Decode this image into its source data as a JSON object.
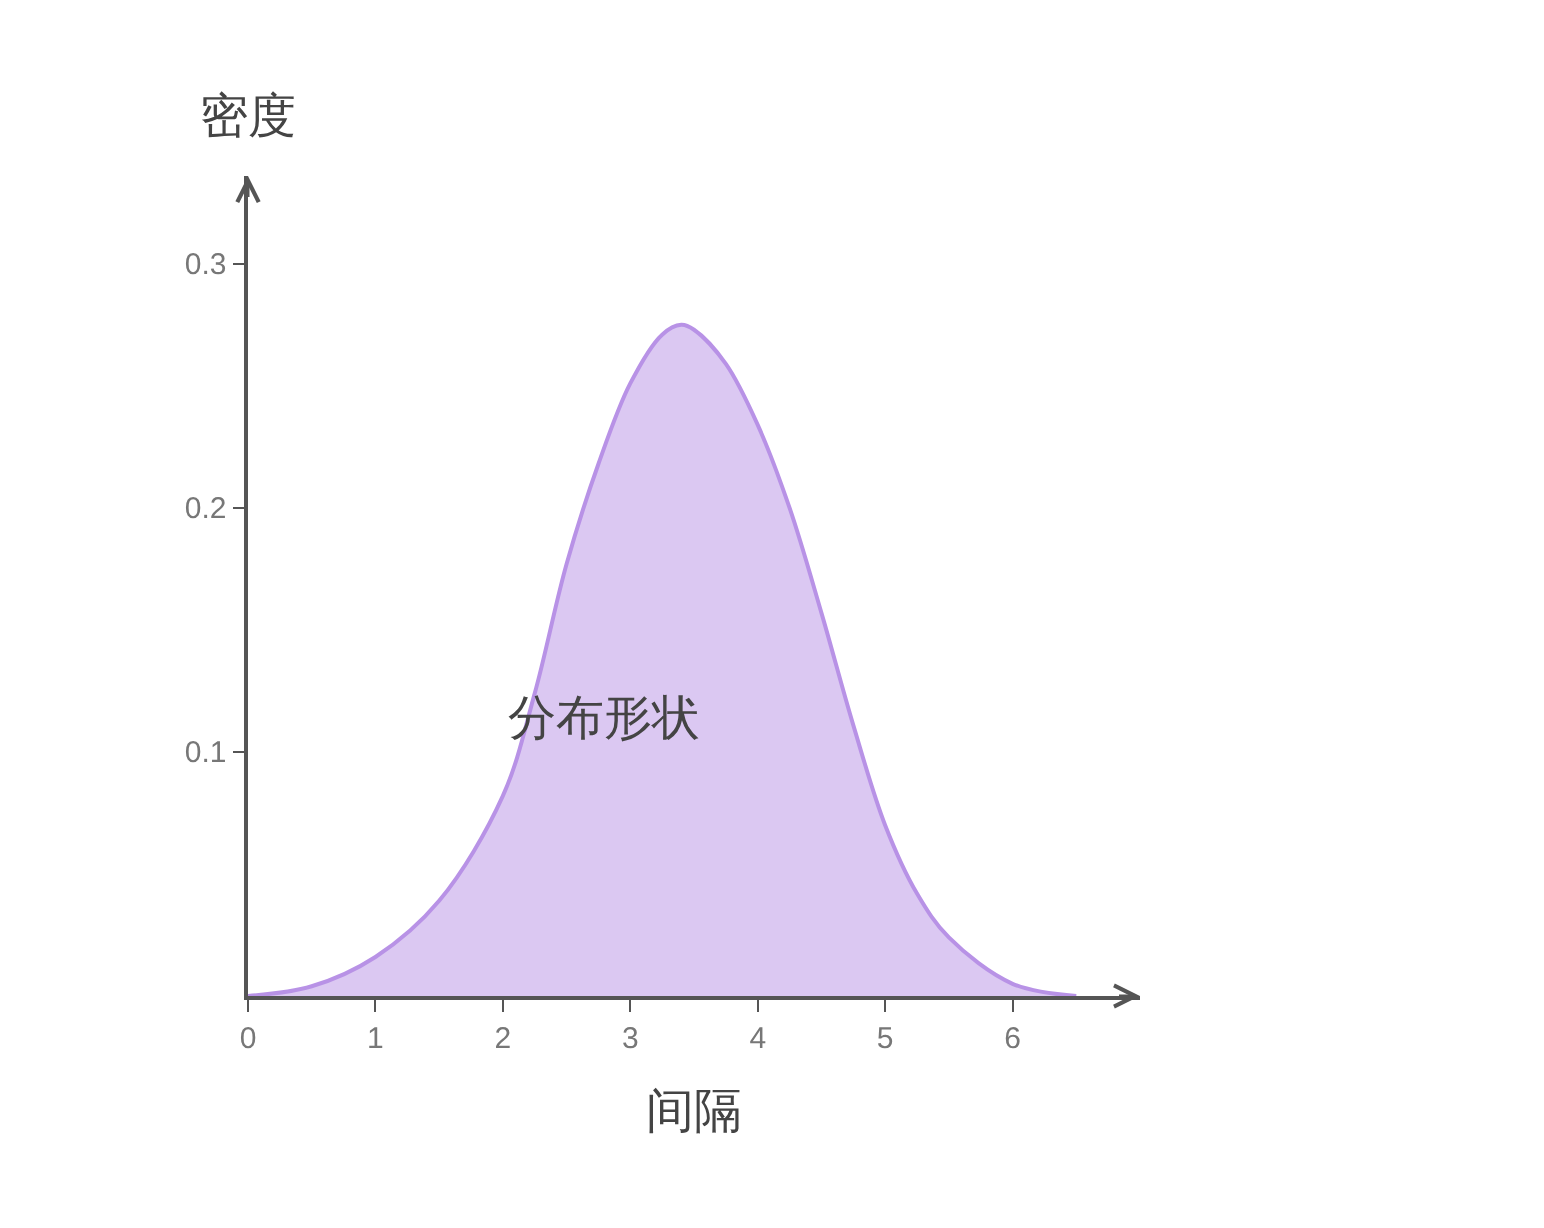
{
  "chart_data": {
    "type": "area",
    "xlabel": "间隔",
    "ylabel": "密度",
    "annotations": [
      "分布形状"
    ],
    "x": [
      0,
      0.5,
      1,
      1.5,
      2,
      2.25,
      2.5,
      2.75,
      3,
      3.25,
      3.4,
      3.5,
      3.75,
      4,
      4.25,
      4.5,
      4.75,
      5,
      5.25,
      5.5,
      6,
      6.5
    ],
    "series": [
      {
        "color": "#b892e6",
        "values": [
          0,
          0.004,
          0.016,
          0.039,
          0.082,
          0.124,
          0.177,
          0.218,
          0.251,
          0.271,
          0.275,
          0.273,
          0.259,
          0.234,
          0.2,
          0.157,
          0.111,
          0.07,
          0.042,
          0.024,
          0.005,
          0
        ]
      }
    ],
    "xlim": [
      0,
      7
    ],
    "ylim": [
      0,
      0.336
    ],
    "xticks": [
      0,
      1,
      2,
      3,
      4,
      5,
      6
    ],
    "yticks": [
      0.1,
      0.2,
      0.3
    ],
    "grid": false,
    "marker": "none",
    "line_style": "solid"
  }
}
